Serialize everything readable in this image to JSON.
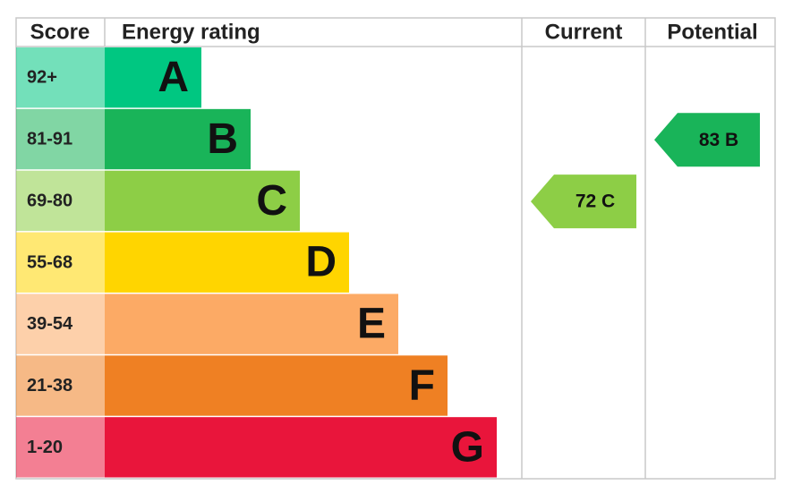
{
  "headers": [
    "Score",
    "Energy rating",
    "Current",
    "Potential"
  ],
  "bands": [
    {
      "score": "92+",
      "letter": "A",
      "color": "#00c781"
    },
    {
      "score": "81-91",
      "letter": "B",
      "color": "#19b459"
    },
    {
      "score": "69-80",
      "letter": "C",
      "color": "#8dce46"
    },
    {
      "score": "55-68",
      "letter": "D",
      "color": "#ffd500"
    },
    {
      "score": "39-54",
      "letter": "E",
      "color": "#fcaa65"
    },
    {
      "score": "21-38",
      "letter": "F",
      "color": "#ef8023"
    },
    {
      "score": "1-20",
      "letter": "G",
      "color": "#e9153b"
    }
  ],
  "current": {
    "value": 72,
    "label": "72 C"
  },
  "potential": {
    "value": 83,
    "label": "83 B"
  }
}
